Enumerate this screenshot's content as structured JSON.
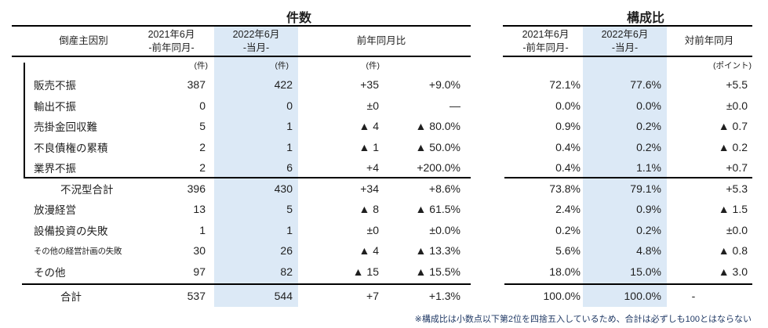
{
  "section_titles": {
    "counts": "件数",
    "composition": "構成比"
  },
  "table": {
    "header": {
      "cause": "倒産主因別",
      "prev_l1": "2021年6月",
      "prev_l2": "-前年同月-",
      "cur_l1": "2022年6月",
      "cur_l2": "-当月-",
      "yoy": "前年同月比",
      "vs_prev": "対前年同月"
    },
    "units": {
      "cases": "(件)",
      "points": "(ポイント)"
    },
    "rows": [
      {
        "label": "販売不振",
        "count_prev": "387",
        "count_cur": "422",
        "diff": "+35",
        "diff_pct": "+9.0%",
        "ratio_prev": "72.1%",
        "ratio_cur": "77.6%",
        "ratio_diff": "+5.5"
      },
      {
        "label": "輸出不振",
        "count_prev": "0",
        "count_cur": "0",
        "diff": "±0",
        "diff_pct": "—",
        "ratio_prev": "0.0%",
        "ratio_cur": "0.0%",
        "ratio_diff": "±0.0"
      },
      {
        "label": "売掛金回収難",
        "count_prev": "5",
        "count_cur": "1",
        "diff": "▲ 4",
        "diff_pct": "▲ 80.0%",
        "ratio_prev": "0.9%",
        "ratio_cur": "0.2%",
        "ratio_diff": "▲ 0.7"
      },
      {
        "label": "不良債権の累積",
        "count_prev": "2",
        "count_cur": "1",
        "diff": "▲ 1",
        "diff_pct": "▲ 50.0%",
        "ratio_prev": "0.4%",
        "ratio_cur": "0.2%",
        "ratio_diff": "▲ 0.2"
      },
      {
        "label": "業界不振",
        "count_prev": "2",
        "count_cur": "6",
        "diff": "+4",
        "diff_pct": "+200.0%",
        "ratio_prev": "0.4%",
        "ratio_cur": "1.1%",
        "ratio_diff": "+0.7"
      },
      {
        "label": "不況型合計",
        "count_prev": "396",
        "count_cur": "430",
        "diff": "+34",
        "diff_pct": "+8.6%",
        "ratio_prev": "73.8%",
        "ratio_cur": "79.1%",
        "ratio_diff": "+5.3"
      },
      {
        "label": "放漫経営",
        "count_prev": "13",
        "count_cur": "5",
        "diff": "▲ 8",
        "diff_pct": "▲ 61.5%",
        "ratio_prev": "2.4%",
        "ratio_cur": "0.9%",
        "ratio_diff": "▲ 1.5"
      },
      {
        "label": "設備投資の失敗",
        "count_prev": "1",
        "count_cur": "1",
        "diff": "±0",
        "diff_pct": "±0.0%",
        "ratio_prev": "0.2%",
        "ratio_cur": "0.2%",
        "ratio_diff": "±0.0"
      },
      {
        "label": "その他の経営計画の失敗",
        "count_prev": "30",
        "count_cur": "26",
        "diff": "▲ 4",
        "diff_pct": "▲ 13.3%",
        "ratio_prev": "5.6%",
        "ratio_cur": "4.8%",
        "ratio_diff": "▲ 0.8"
      },
      {
        "label": "その他",
        "count_prev": "97",
        "count_cur": "82",
        "diff": "▲ 15",
        "diff_pct": "▲ 15.5%",
        "ratio_prev": "18.0%",
        "ratio_cur": "15.0%",
        "ratio_diff": "▲ 3.0"
      },
      {
        "label": "合計",
        "count_prev": "537",
        "count_cur": "544",
        "diff": "+7",
        "diff_pct": "+1.3%",
        "ratio_prev": "100.0%",
        "ratio_cur": "100.0%",
        "ratio_diff": "-"
      }
    ]
  },
  "footnote": "※構成比は小数点以下第2位を四捨五入しているため、合計は必ずしも100とはならない",
  "colors": {
    "highlight": "#dce9f6",
    "footnote_text": "#1f3864",
    "line": "#000000",
    "text": "#1f1f1f"
  }
}
